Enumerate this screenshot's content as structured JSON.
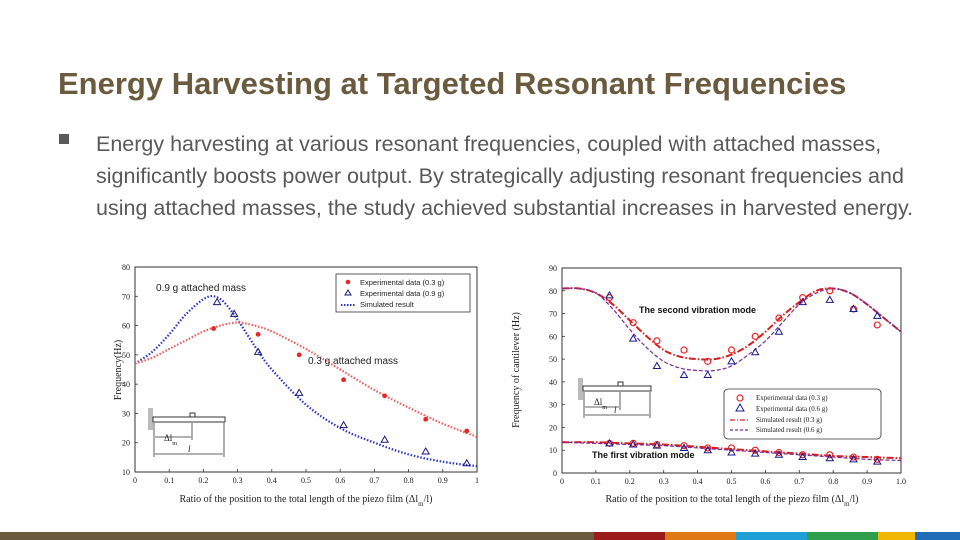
{
  "slide": {
    "title": "Energy Harvesting at Targeted Resonant Frequencies",
    "body": "Energy harvesting at various resonant frequencies, coupled with attached masses, significantly boosts power output. By strategically adjusting resonant frequencies and using attached masses, the study achieved substantial increases in harvested energy.",
    "footer_colors": [
      "#6b5b3e",
      "#9b1b1b",
      "#e07a16",
      "#1e9fd6",
      "#2e9e4a",
      "#f2b705",
      "#1e6bb8"
    ]
  },
  "chart_data": [
    {
      "type": "scatter",
      "title": "",
      "xlabel": "Ratio of the position to the total length of the piezo film (Δl_m/l)",
      "ylabel": "Frequency(Hz)",
      "xlim": [
        0,
        1
      ],
      "ylim": [
        10,
        80
      ],
      "x_ticks": [
        "0",
        "0.1",
        "0.2",
        "0.3",
        "0.4",
        "0.5",
        "0.6",
        "0.7",
        "0.8",
        "0.9",
        "1"
      ],
      "y_ticks": [
        "10",
        "20",
        "30",
        "40",
        "50",
        "60",
        "70",
        "80"
      ],
      "legend": [
        "Experimental data (0.3 g)",
        "Experimental data (0.9 g)",
        "Simulated result"
      ],
      "legend_position": "top-right",
      "annotations": [
        "0.9 g attached mass",
        "0.3 g attached mass"
      ],
      "inset_labels": [
        "Δl_m",
        "l"
      ],
      "series": [
        {
          "name": "Experimental data (0.3 g)",
          "marker": "dot",
          "color": "#e8262a",
          "x": [
            0.23,
            0.36,
            0.48,
            0.61,
            0.73,
            0.85,
            0.97
          ],
          "y": [
            59,
            57,
            50,
            41.5,
            36,
            28,
            24
          ]
        },
        {
          "name": "Experimental data (0.9 g)",
          "marker": "triangle",
          "color": "#1a1a7a",
          "x": [
            0.24,
            0.29,
            0.36,
            0.48,
            0.61,
            0.73,
            0.85,
            0.97
          ],
          "y": [
            68,
            64,
            51,
            37,
            26,
            21,
            17,
            13
          ]
        },
        {
          "name": "Simulated result (0.9 g)",
          "marker": "dotted-line",
          "color": "#2b35c9",
          "x": [
            0,
            0.05,
            0.1,
            0.15,
            0.2,
            0.23,
            0.26,
            0.3,
            0.35,
            0.4,
            0.5,
            0.6,
            0.7,
            0.8,
            0.9,
            1.0
          ],
          "y": [
            47,
            51,
            57,
            64,
            69,
            70,
            68,
            62,
            53,
            45,
            33,
            25,
            20,
            16,
            13.5,
            12
          ]
        },
        {
          "name": "Simulated result (0.3 g)",
          "marker": "dotted-line",
          "color": "#f05a5a",
          "x": [
            0,
            0.05,
            0.1,
            0.15,
            0.2,
            0.25,
            0.3,
            0.35,
            0.4,
            0.5,
            0.6,
            0.7,
            0.8,
            0.9,
            1.0
          ],
          "y": [
            47,
            49,
            52,
            55,
            58,
            60,
            61,
            60,
            58,
            52,
            45,
            38,
            32,
            26.5,
            22
          ]
        }
      ]
    },
    {
      "type": "scatter",
      "title": "",
      "xlabel": "Ratio of the position to the total length of the piezo film (Δl_m/l)",
      "ylabel": "Frequency of cantilever (Hz)",
      "xlim": [
        0,
        1.0
      ],
      "ylim": [
        0,
        90
      ],
      "x_ticks": [
        "0",
        "0.1",
        "0.2",
        "0.3",
        "0.4",
        "0.5",
        "0.6",
        "0.7",
        "0.8",
        "0.9",
        "1.0"
      ],
      "y_ticks": [
        "0",
        "10",
        "20",
        "30",
        "40",
        "50",
        "60",
        "70",
        "80",
        "90"
      ],
      "legend": [
        "Experimental data (0.3 g)",
        "Experimental data (0.6 g)",
        "Simulated result (0.3 g)",
        "Simulated result (0.6 g)"
      ],
      "legend_position": "bottom-right",
      "annotations": [
        "The second vibration mode",
        "The first vibration mode"
      ],
      "inset_labels": [
        "Δl_m",
        "l"
      ],
      "series": [
        {
          "name": "Experimental data (0.3 g)",
          "marker": "circle",
          "color": "#e8262a",
          "x": [
            0.14,
            0.21,
            0.28,
            0.36,
            0.43,
            0.5,
            0.57,
            0.64,
            0.71,
            0.79,
            0.86,
            0.93,
            0.14,
            0.21,
            0.28,
            0.36,
            0.43,
            0.5,
            0.57,
            0.64,
            0.71,
            0.79,
            0.86,
            0.93
          ],
          "y": [
            77,
            66,
            58,
            54,
            49,
            54,
            60,
            68,
            77,
            80,
            72,
            65,
            13,
            13,
            12.5,
            12,
            11,
            11,
            10,
            9,
            8,
            8,
            7,
            6
          ]
        },
        {
          "name": "Experimental data (0.6 g)",
          "marker": "triangle",
          "color": "#1a1a8a",
          "x": [
            0.14,
            0.21,
            0.28,
            0.36,
            0.43,
            0.5,
            0.57,
            0.64,
            0.71,
            0.79,
            0.86,
            0.93,
            0.14,
            0.21,
            0.28,
            0.36,
            0.43,
            0.5,
            0.57,
            0.64,
            0.71,
            0.79,
            0.86,
            0.93
          ],
          "y": [
            78,
            59,
            47,
            43,
            43,
            49,
            53,
            62,
            75,
            76,
            72,
            69,
            13,
            12.5,
            12,
            11,
            10,
            9,
            8.5,
            8,
            7,
            6.5,
            6,
            5
          ]
        },
        {
          "name": "Simulated result (0.3 g)",
          "marker": "dash-dot-line",
          "color": "#d42020",
          "x": [
            0,
            0.05,
            0.1,
            0.15,
            0.2,
            0.25,
            0.3,
            0.35,
            0.4,
            0.45,
            0.5,
            0.55,
            0.6,
            0.65,
            0.7,
            0.75,
            0.8,
            0.85,
            0.9,
            0.95,
            1.0
          ],
          "y": [
            81,
            81,
            79,
            74,
            67,
            60,
            54,
            51,
            50,
            50,
            52,
            56,
            62,
            69,
            75,
            80,
            81,
            79,
            74,
            68,
            62
          ]
        },
        {
          "name": "Simulated result (0.6 g)",
          "marker": "dashed-line",
          "color": "#7a2a9a",
          "x": [
            0,
            0.05,
            0.1,
            0.15,
            0.2,
            0.25,
            0.3,
            0.35,
            0.4,
            0.45,
            0.5,
            0.55,
            0.6,
            0.65,
            0.7,
            0.75,
            0.8,
            0.85,
            0.9,
            0.95,
            1.0
          ],
          "y": [
            81,
            81,
            79,
            72,
            63,
            55,
            49,
            46,
            45,
            45,
            47,
            52,
            58,
            66,
            74,
            79,
            81,
            79,
            74,
            68,
            62
          ]
        },
        {
          "name": "Simulated result (0.3 g) first mode",
          "marker": "dash-dot-line",
          "color": "#d42020",
          "x": [
            0,
            0.1,
            0.2,
            0.3,
            0.4,
            0.5,
            0.6,
            0.7,
            0.8,
            0.9,
            1.0
          ],
          "y": [
            13.5,
            13.5,
            13,
            12.5,
            11.5,
            10.5,
            9.5,
            8.5,
            7.5,
            7,
            6.5
          ]
        },
        {
          "name": "Simulated result (0.6 g) first mode",
          "marker": "dashed-line",
          "color": "#7a2a9a",
          "x": [
            0,
            0.1,
            0.2,
            0.3,
            0.4,
            0.5,
            0.6,
            0.7,
            0.8,
            0.9,
            1.0
          ],
          "y": [
            13.5,
            13,
            12.5,
            12,
            11,
            10,
            9,
            8,
            7,
            6,
            5.5
          ]
        }
      ]
    }
  ]
}
